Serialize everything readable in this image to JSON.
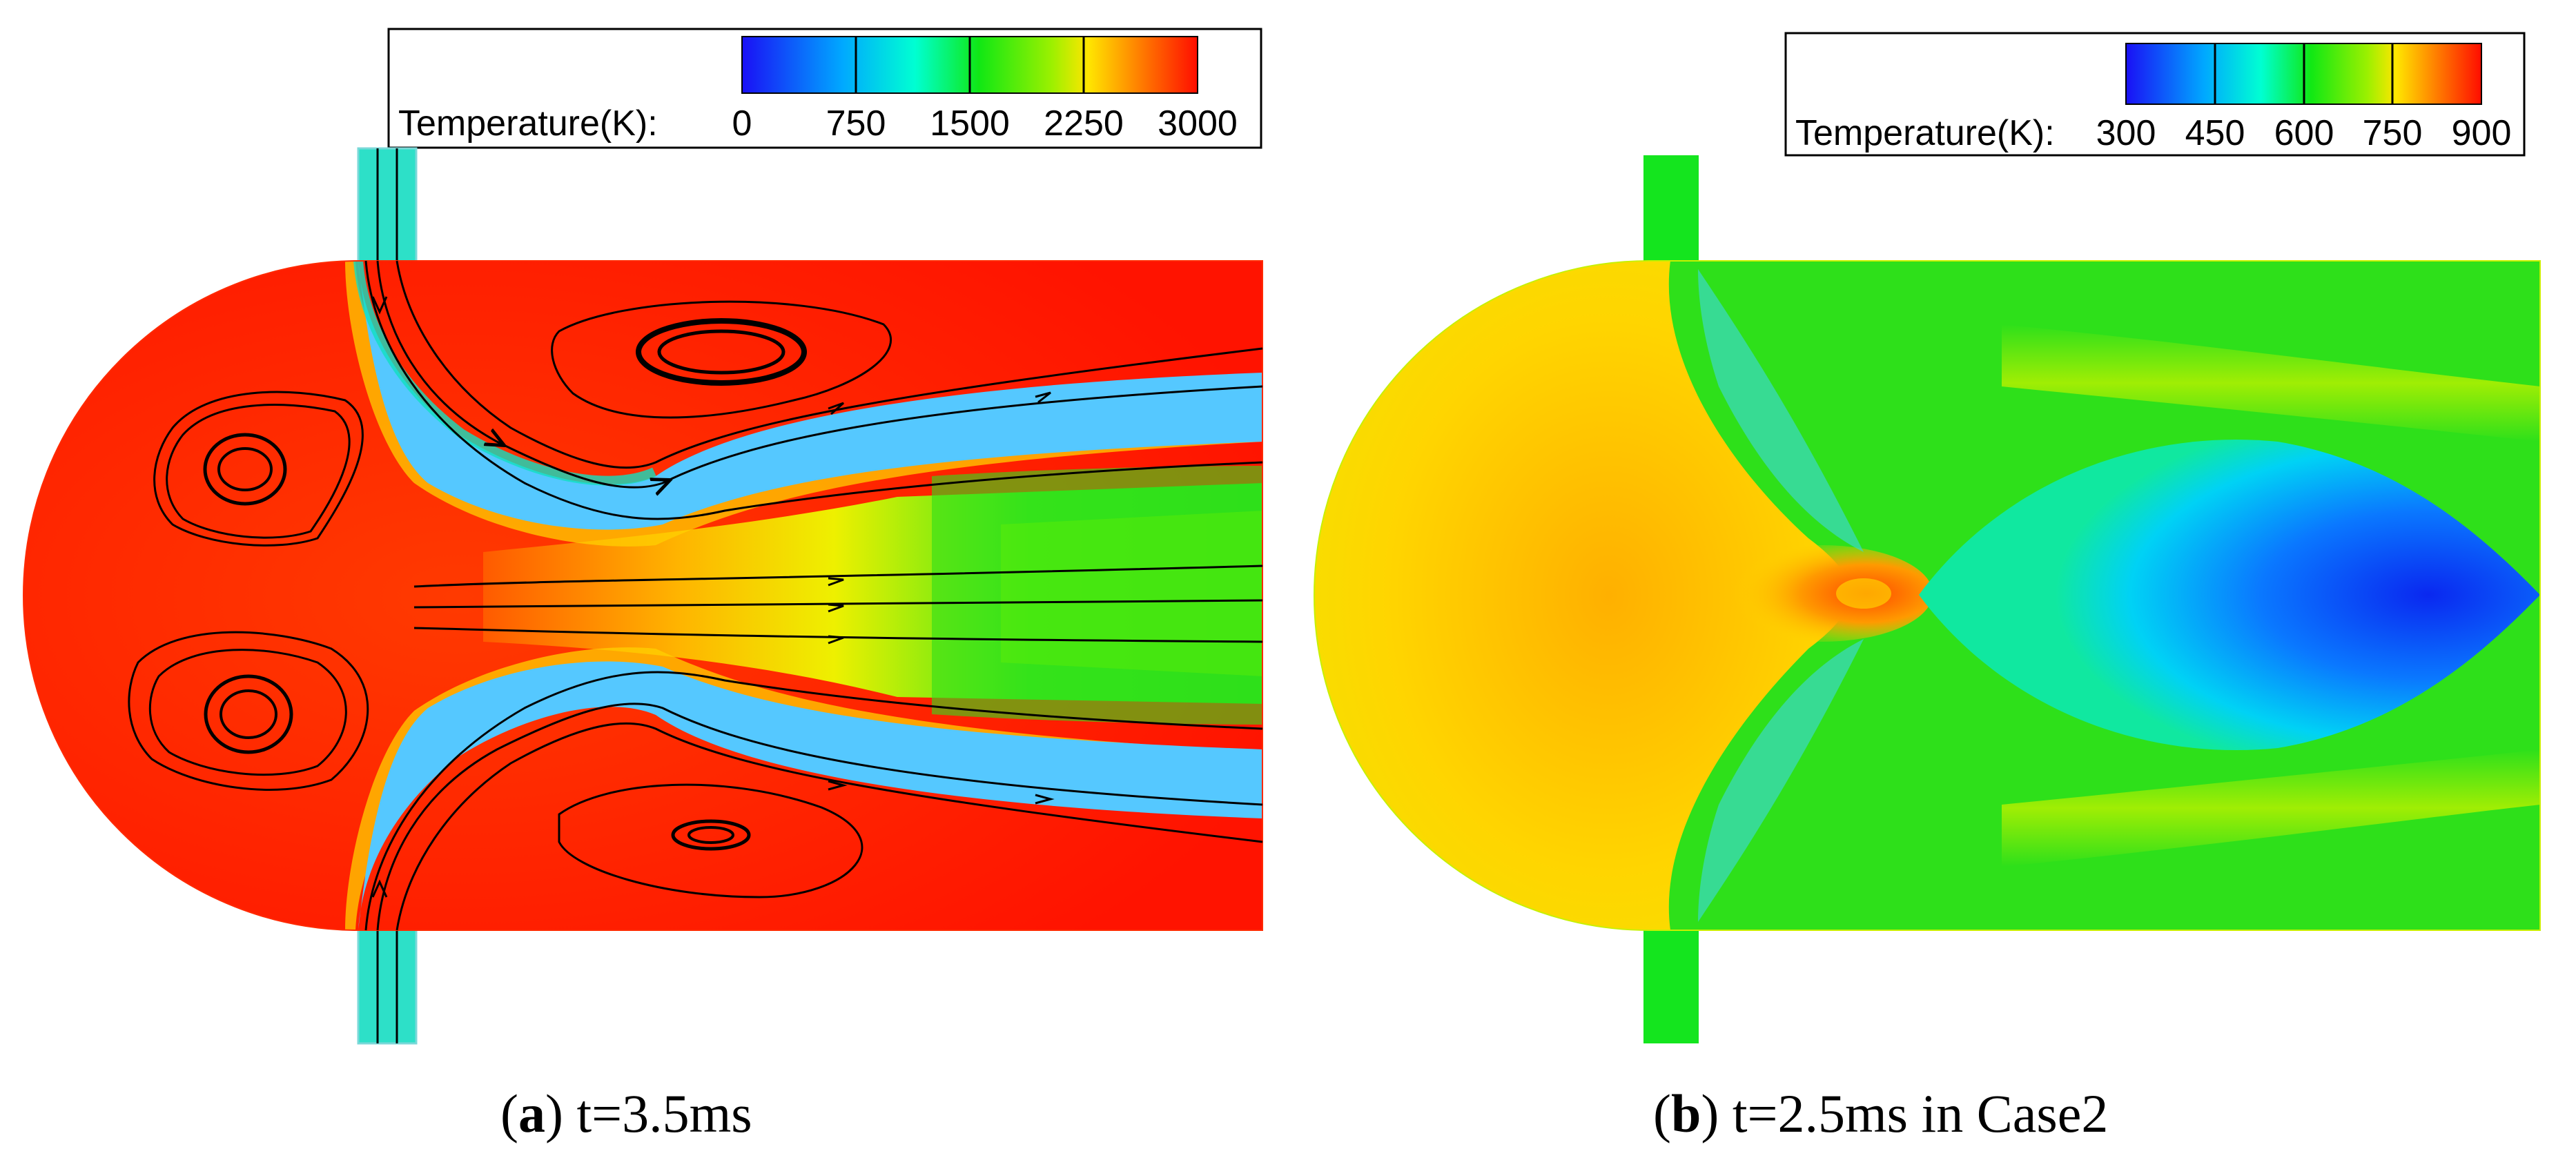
{
  "panels": [
    {
      "id": "a",
      "caption_letter": "a",
      "caption_text": ") t=3.5ms",
      "legend": {
        "title": "Temperature(K):",
        "ticks": [
          "0",
          "750",
          "1500",
          "2250",
          "3000"
        ]
      }
    },
    {
      "id": "b",
      "caption_letter": "b",
      "caption_text": ") t=2.5ms in Case2",
      "legend": {
        "title": "Temperature(K):",
        "ticks": [
          "300",
          "450",
          "600",
          "750",
          "900"
        ]
      }
    }
  ],
  "colormap": [
    "#1a10f5",
    "#00b4ff",
    "#00ffd2",
    "#10e814",
    "#9cf000",
    "#ffe600",
    "#ff7800",
    "#ff0d00"
  ]
}
